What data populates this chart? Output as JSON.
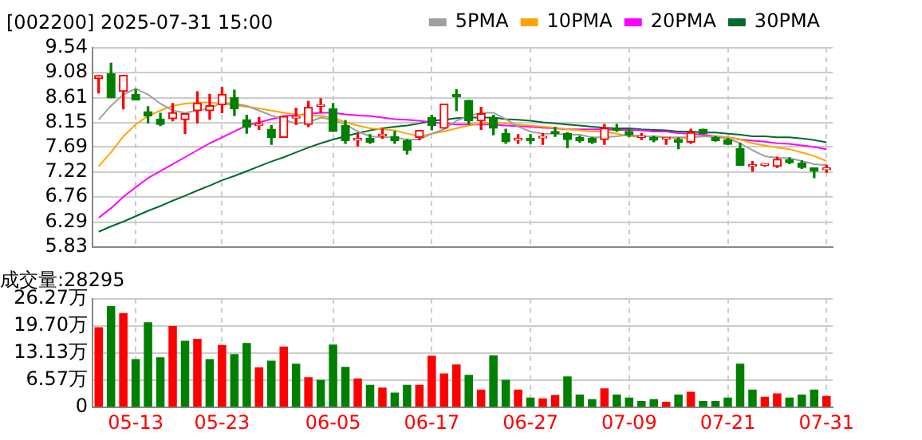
{
  "chart_data": [
    {
      "type": "candlestick",
      "title": "[002200] 2025-07-31 15:00",
      "legend": "top right",
      "grid": true,
      "tick_labels": "y",
      "categories": [
        null,
        null,
        null,
        null,
        null,
        null,
        null,
        null,
        null,
        null,
        null,
        null,
        null,
        null,
        null,
        null,
        null,
        null,
        null,
        null,
        null,
        null,
        null,
        null,
        null,
        null,
        null,
        null,
        null,
        null,
        null,
        null,
        null,
        null,
        null,
        null,
        null,
        null,
        null,
        null,
        null,
        null,
        null,
        null,
        null,
        null,
        null,
        null,
        null,
        null,
        null,
        null,
        null,
        null,
        null,
        null,
        null,
        null,
        null,
        null
      ],
      "ylim": [
        5.83,
        9.54
      ],
      "yticks": [
        5.83,
        6.29,
        6.76,
        7.22,
        7.69,
        8.15,
        8.61,
        9.08,
        9.54
      ],
      "ohlc": [
        [
          8.97,
          9.02,
          8.7,
          9.02
        ],
        [
          9.06,
          9.25,
          8.61,
          8.61
        ],
        [
          8.73,
          9.03,
          8.4,
          9.03
        ],
        [
          8.67,
          8.76,
          8.57,
          8.57
        ],
        [
          8.35,
          8.44,
          8.14,
          8.27
        ],
        [
          8.21,
          8.32,
          8.09,
          8.11
        ],
        [
          8.22,
          8.5,
          8.18,
          8.33
        ],
        [
          8.2,
          8.31,
          7.94,
          8.31
        ],
        [
          8.37,
          8.72,
          8.14,
          8.51
        ],
        [
          8.37,
          8.67,
          8.21,
          8.46
        ],
        [
          8.48,
          8.8,
          8.33,
          8.67
        ],
        [
          8.61,
          8.75,
          8.28,
          8.4
        ],
        [
          8.2,
          8.28,
          7.95,
          8.06
        ],
        [
          8.09,
          8.24,
          8.02,
          8.11
        ],
        [
          8.02,
          8.09,
          7.74,
          7.87
        ],
        [
          7.87,
          8.26,
          7.87,
          8.26
        ],
        [
          8.23,
          8.41,
          8.11,
          8.24
        ],
        [
          8.11,
          8.54,
          8.07,
          8.43
        ],
        [
          8.45,
          8.59,
          8.33,
          8.46
        ],
        [
          8.4,
          8.5,
          7.98,
          7.98
        ],
        [
          8.09,
          8.18,
          7.76,
          7.81
        ],
        [
          7.82,
          7.94,
          7.71,
          7.83
        ],
        [
          7.85,
          7.92,
          7.76,
          7.78
        ],
        [
          7.9,
          8.02,
          7.85,
          7.91
        ],
        [
          7.88,
          7.98,
          7.76,
          7.81
        ],
        [
          7.81,
          7.83,
          7.56,
          7.63
        ],
        [
          7.87,
          8.0,
          7.83,
          8.0
        ],
        [
          8.24,
          8.28,
          8.01,
          8.09
        ],
        [
          8.04,
          8.49,
          8.04,
          8.49
        ],
        [
          8.67,
          8.76,
          8.37,
          8.63
        ],
        [
          8.56,
          8.56,
          8.11,
          8.18
        ],
        [
          8.18,
          8.43,
          8.02,
          8.31
        ],
        [
          8.24,
          8.28,
          7.92,
          8.04
        ],
        [
          7.94,
          8.02,
          7.76,
          7.79
        ],
        [
          7.82,
          7.92,
          7.76,
          7.83
        ],
        [
          7.85,
          7.92,
          7.76,
          7.81
        ],
        [
          7.86,
          7.94,
          7.74,
          7.87
        ],
        [
          7.98,
          8.06,
          7.89,
          7.94
        ],
        [
          7.94,
          7.96,
          7.68,
          7.83
        ],
        [
          7.87,
          7.89,
          7.78,
          7.81
        ],
        [
          7.85,
          7.87,
          7.76,
          7.78
        ],
        [
          7.83,
          8.11,
          7.74,
          8.04
        ],
        [
          8.04,
          8.11,
          7.98,
          8.0
        ],
        [
          7.98,
          8.01,
          7.89,
          7.92
        ],
        [
          7.87,
          7.94,
          7.83,
          7.88
        ],
        [
          7.87,
          7.89,
          7.79,
          7.82
        ],
        [
          7.84,
          7.86,
          7.74,
          7.85
        ],
        [
          7.83,
          7.86,
          7.66,
          7.78
        ],
        [
          7.78,
          8.02,
          7.76,
          7.96
        ],
        [
          8.02,
          8.02,
          7.94,
          7.94
        ],
        [
          7.87,
          7.89,
          7.8,
          7.81
        ],
        [
          7.82,
          7.85,
          7.74,
          7.74
        ],
        [
          7.66,
          7.76,
          7.35,
          7.35
        ],
        [
          7.33,
          7.42,
          7.24,
          7.34
        ],
        [
          7.35,
          7.37,
          7.33,
          7.36
        ],
        [
          7.33,
          7.5,
          7.31,
          7.46
        ],
        [
          7.45,
          7.49,
          7.38,
          7.4
        ],
        [
          7.39,
          7.43,
          7.29,
          7.31
        ],
        [
          7.3,
          7.3,
          7.12,
          7.24
        ],
        [
          7.27,
          7.35,
          7.22,
          7.28
        ]
      ],
      "colors": [
        "#ff0000",
        "#008000",
        "#ff0000",
        "#008000",
        "#008000",
        "#008000",
        "#ff0000",
        "#ff0000",
        "#ff0000",
        "#ff0000",
        "#ff0000",
        "#008000",
        "#008000",
        "#ff0000",
        "#008000",
        "#ff0000",
        "#ff0000",
        "#ff0000",
        "#ff0000",
        "#008000",
        "#008000",
        "#ff0000",
        "#008000",
        "#ff0000",
        "#008000",
        "#008000",
        "#ff0000",
        "#008000",
        "#ff0000",
        "#008000",
        "#008000",
        "#ff0000",
        "#008000",
        "#008000",
        "#ff0000",
        "#008000",
        "#ff0000",
        "#008000",
        "#008000",
        "#008000",
        "#008000",
        "#ff0000",
        "#008000",
        "#008000",
        "#ff0000",
        "#008000",
        "#ff0000",
        "#008000",
        "#ff0000",
        "#008000",
        "#008000",
        "#008000",
        "#008000",
        "#ff0000",
        "#ff0000",
        "#ff0000",
        "#008000",
        "#008000",
        "#008000",
        "#ff0000"
      ],
      "series": [
        {
          "type": "line",
          "name": "5PMA",
          "color": "#a0a0a0",
          "values": [
            8.2,
            8.46,
            8.67,
            8.78,
            8.67,
            8.5,
            8.37,
            8.33,
            8.37,
            8.41,
            8.52,
            8.5,
            8.46,
            8.37,
            8.28,
            8.2,
            8.13,
            8.15,
            8.24,
            8.2,
            8.11,
            7.98,
            7.89,
            7.87,
            7.87,
            7.83,
            7.83,
            7.94,
            8.02,
            8.18,
            8.27,
            8.33,
            8.33,
            8.21,
            8.07,
            7.98,
            7.94,
            7.94,
            7.92,
            7.92,
            7.87,
            7.87,
            7.89,
            7.92,
            7.89,
            7.89,
            7.87,
            7.87,
            7.87,
            7.89,
            7.88,
            7.85,
            7.76,
            7.63,
            7.52,
            7.49,
            7.48,
            7.43,
            7.37,
            7.35
          ]
        },
        {
          "type": "line",
          "name": "10PMA",
          "color": "#ffa500",
          "values": [
            7.33,
            7.59,
            7.89,
            8.11,
            8.27,
            8.37,
            8.46,
            8.5,
            8.52,
            8.52,
            8.5,
            8.47,
            8.44,
            8.41,
            8.37,
            8.33,
            8.3,
            8.28,
            8.27,
            8.24,
            8.15,
            8.09,
            8.04,
            8.02,
            8.0,
            7.94,
            7.89,
            7.94,
            7.98,
            8.04,
            8.09,
            8.13,
            8.15,
            8.13,
            8.11,
            8.09,
            8.07,
            8.05,
            8.02,
            8.0,
            7.98,
            7.98,
            7.94,
            7.89,
            7.89,
            7.89,
            7.87,
            7.85,
            7.87,
            7.89,
            7.89,
            7.87,
            7.83,
            7.76,
            7.72,
            7.68,
            7.65,
            7.59,
            7.52,
            7.43
          ]
        },
        {
          "type": "line",
          "name": "20PMA",
          "color": "#ff00ff",
          "values": [
            6.37,
            6.55,
            6.76,
            6.94,
            7.11,
            7.24,
            7.37,
            7.5,
            7.63,
            7.76,
            7.87,
            7.98,
            8.09,
            8.15,
            8.21,
            8.27,
            8.28,
            8.31,
            8.33,
            8.33,
            8.3,
            8.28,
            8.27,
            8.24,
            8.21,
            8.2,
            8.18,
            8.15,
            8.13,
            8.11,
            8.11,
            8.11,
            8.11,
            8.09,
            8.08,
            8.07,
            8.05,
            8.04,
            8.02,
            8.02,
            8.02,
            8.02,
            8.01,
            8.01,
            8.0,
            7.98,
            7.98,
            7.95,
            7.94,
            7.92,
            7.89,
            7.87,
            7.83,
            7.81,
            7.79,
            7.76,
            7.75,
            7.72,
            7.69,
            7.65
          ]
        },
        {
          "type": "line",
          "name": "30PMA",
          "color": "#006a30",
          "values": [
            6.11,
            6.21,
            6.3,
            6.4,
            6.5,
            6.59,
            6.69,
            6.78,
            6.88,
            6.97,
            7.07,
            7.15,
            7.24,
            7.33,
            7.42,
            7.5,
            7.59,
            7.68,
            7.76,
            7.83,
            7.89,
            7.95,
            8.0,
            8.04,
            8.07,
            8.09,
            8.13,
            8.18,
            8.2,
            8.23,
            8.24,
            8.24,
            8.24,
            8.21,
            8.2,
            8.18,
            8.15,
            8.13,
            8.11,
            8.09,
            8.07,
            8.05,
            8.04,
            8.04,
            8.02,
            8.01,
            8.0,
            7.98,
            7.98,
            7.96,
            7.96,
            7.94,
            7.92,
            7.89,
            7.89,
            7.87,
            7.87,
            7.85,
            7.82,
            7.78
          ]
        }
      ]
    },
    {
      "type": "bar",
      "title": "成交量:28295",
      "grid": true,
      "categories": [
        null,
        null,
        null,
        "05-13",
        null,
        null,
        null,
        null,
        null,
        null,
        "05-23",
        null,
        null,
        null,
        null,
        null,
        null,
        null,
        null,
        "06-05",
        null,
        null,
        null,
        null,
        null,
        null,
        null,
        "06-17",
        null,
        null,
        null,
        null,
        null,
        null,
        null,
        "06-27",
        null,
        null,
        null,
        null,
        null,
        null,
        null,
        "07-09",
        null,
        null,
        null,
        null,
        null,
        null,
        null,
        "07-21",
        null,
        null,
        null,
        null,
        null,
        null,
        null,
        "07-31"
      ],
      "ylim": [
        0,
        26.27
      ],
      "yticks": [
        0,
        {
          "value": 6.57,
          "label": "6.57万"
        },
        {
          "value": 13.13,
          "label": "13.13万"
        },
        {
          "value": 19.7,
          "label": "19.70万"
        },
        {
          "value": 26.27,
          "label": "26.27万"
        }
      ],
      "values": [
        19.4,
        24.5,
        22.8,
        11.7,
        20.6,
        12.1,
        19.7,
        16.1,
        16.6,
        11.7,
        15.1,
        12.9,
        15.6,
        9.7,
        11.3,
        14.7,
        10.6,
        7.3,
        6.7,
        15.2,
        9.8,
        7.0,
        5.5,
        4.8,
        3.6,
        5.5,
        5.5,
        12.5,
        8.2,
        10.4,
        7.9,
        4.3,
        12.6,
        6.7,
        4.3,
        2.4,
        2.2,
        3.0,
        7.5,
        3.1,
        2.0,
        4.6,
        3.1,
        2.4,
        1.6,
        2.0,
        1.4,
        3.1,
        3.8,
        1.6,
        1.6,
        2.4,
        10.6,
        4.3,
        2.6,
        3.4,
        2.4,
        3.1,
        4.3,
        2.8
      ],
      "colors": [
        "#ff0000",
        "#008000",
        "#ff0000",
        "#008000",
        "#008000",
        "#008000",
        "#ff0000",
        "#008000",
        "#ff0000",
        "#008000",
        "#ff0000",
        "#008000",
        "#008000",
        "#ff0000",
        "#008000",
        "#ff0000",
        "#008000",
        "#ff0000",
        "#008000",
        "#008000",
        "#008000",
        "#ff0000",
        "#008000",
        "#ff0000",
        "#008000",
        "#008000",
        "#ff0000",
        "#ff0000",
        "#ff0000",
        "#ff0000",
        "#008000",
        "#ff0000",
        "#008000",
        "#008000",
        "#ff0000",
        "#008000",
        "#ff0000",
        "#ff0000",
        "#008000",
        "#008000",
        "#008000",
        "#ff0000",
        "#008000",
        "#008000",
        "#008000",
        "#008000",
        "#ff0000",
        "#008000",
        "#ff0000",
        "#008000",
        "#008000",
        "#008000",
        "#008000",
        "#008000",
        "#ff0000",
        "#ff0000",
        "#008000",
        "#008000",
        "#008000",
        "#ff0000"
      ]
    }
  ]
}
